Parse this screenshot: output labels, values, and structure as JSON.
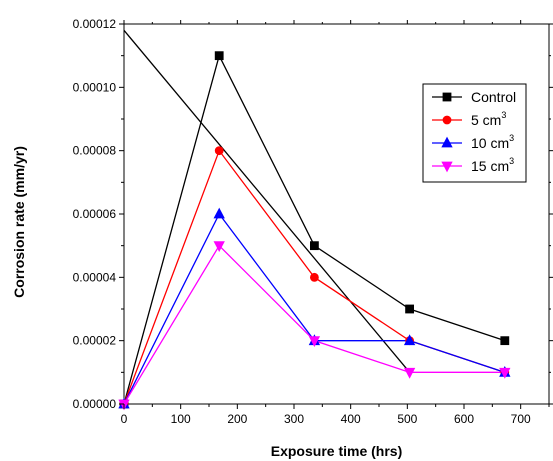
{
  "chart_data": {
    "type": "line",
    "xlabel": "Exposure time (hrs)",
    "ylabel": "Corrosion rate (mm/yr)",
    "xlim": [
      0,
      750
    ],
    "ylim": [
      0,
      0.00012
    ],
    "xticks": [
      0,
      100,
      200,
      300,
      400,
      500,
      600,
      700
    ],
    "xtick_labels": [
      "0",
      "100",
      "200",
      "300",
      "400",
      "500",
      "600",
      "700"
    ],
    "yticks": [
      0,
      2e-05,
      4e-05,
      6e-05,
      8e-05,
      0.0001,
      0.00012
    ],
    "ytick_labels": [
      "0.00000",
      "0.00002",
      "0.00004",
      "0.00006",
      "0.00008",
      "0.00010",
      "0.00012"
    ],
    "grid": false,
    "legend_position": "top-right",
    "series": [
      {
        "name": "Control",
        "color": "#000000",
        "marker": "square",
        "x": [
          0,
          168,
          336,
          504,
          672
        ],
        "y": [
          0,
          0.00011,
          5e-05,
          3e-05,
          2e-05
        ]
      },
      {
        "name": "5 cm",
        "sup": "3",
        "color": "#ff0000",
        "marker": "circle",
        "x": [
          0,
          168,
          336,
          504,
          672
        ],
        "y": [
          0,
          8e-05,
          4e-05,
          2e-05,
          1e-05
        ]
      },
      {
        "name": "10 cm",
        "sup": "3",
        "color": "#0000ff",
        "marker": "triangle-up",
        "x": [
          0,
          168,
          336,
          504,
          672
        ],
        "y": [
          0,
          6e-05,
          2e-05,
          2e-05,
          1e-05
        ]
      },
      {
        "name": "15 cm",
        "sup": "3",
        "color": "#ff00ff",
        "marker": "triangle-down",
        "x": [
          0,
          168,
          336,
          504,
          672
        ],
        "y": [
          0,
          5e-05,
          2e-05,
          1e-05,
          1e-05
        ]
      }
    ],
    "extra_lines": [
      {
        "color": "#000000",
        "x": [
          0,
          168,
          504
        ],
        "y": [
          0.000118,
          8.2e-05,
          1e-05
        ]
      }
    ]
  }
}
